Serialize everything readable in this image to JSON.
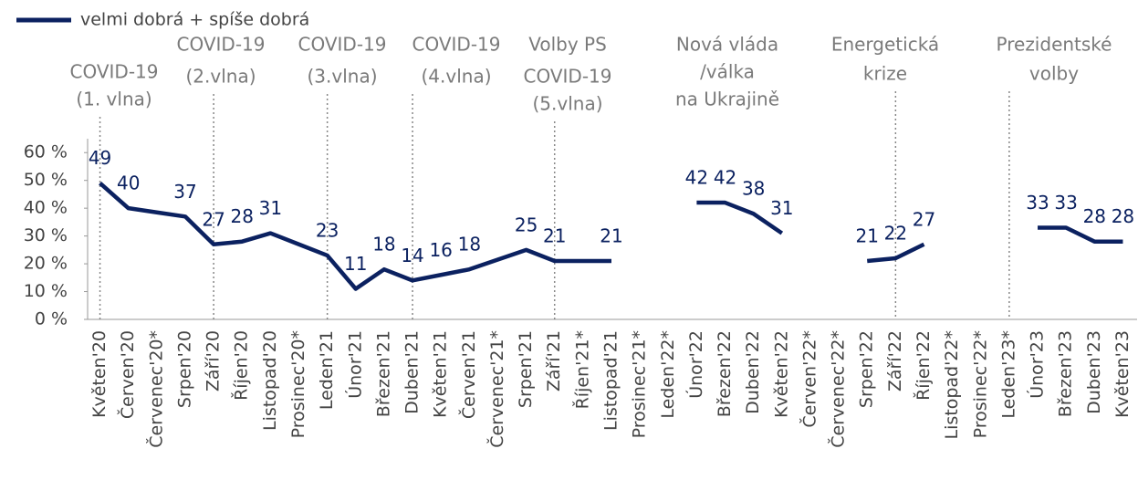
{
  "chart_data": {
    "type": "line",
    "categories": [
      "Květen'20",
      "Červen'20",
      "Červenec'20*",
      "Srpen'20",
      "Září'20",
      "Říjen'20",
      "Listopad'20",
      "Prosinec'20*",
      "Leden'21",
      "Únor'21",
      "Březen'21",
      "Duben'21",
      "Květen'21",
      "Červen'21",
      "Červenec'21*",
      "Srpen'21",
      "Září'21",
      "Říjen'21*",
      "Listopad'21",
      "Prosinec'21*",
      "Leden'22*",
      "Únor'22",
      "Březen'22",
      "Duben'22",
      "Květen'22",
      "Červen'22*",
      "Červenec'22*",
      "Srpen'22",
      "Září'22",
      "Říjen'22",
      "Listopad'22*",
      "Prosinec'22*",
      "Leden'23*",
      "Únor'23",
      "Březen'23",
      "Duben'23",
      "Květen'23"
    ],
    "series": [
      {
        "name": "velmi dobrá + spíše dobrá",
        "color": "#0b2160",
        "values": [
          49,
          40,
          38.5,
          37,
          27,
          28,
          31,
          27,
          23,
          11,
          18,
          14,
          16,
          18,
          21.5,
          25,
          21,
          21,
          21,
          null,
          null,
          42,
          42,
          38,
          31,
          null,
          null,
          21,
          22,
          27,
          null,
          null,
          null,
          33,
          33,
          28,
          28
        ],
        "value_labels": [
          "49",
          "40",
          null,
          "37",
          "27",
          "28",
          "31",
          null,
          "23",
          "11",
          "18",
          "14",
          "16",
          "18",
          null,
          "25",
          "21",
          null,
          "21",
          null,
          null,
          "42",
          "42",
          "38",
          "31",
          null,
          null,
          "21",
          "22",
          "27",
          null,
          null,
          null,
          "33",
          "33",
          "28",
          "28"
        ]
      }
    ],
    "ylim": [
      0,
      65
    ],
    "yticks": [
      {
        "value": 0,
        "label": "0 %"
      },
      {
        "value": 10,
        "label": "10 %"
      },
      {
        "value": 20,
        "label": "20 %"
      },
      {
        "value": 30,
        "label": "30 %"
      },
      {
        "value": 40,
        "label": "40 %"
      },
      {
        "value": 50,
        "label": "50 %"
      },
      {
        "value": 60,
        "label": "60 %"
      }
    ],
    "grid": false,
    "legend": "top-left",
    "annotations": [
      [
        "COVID-19",
        "(1. vlna)"
      ],
      [
        "COVID-19",
        "(2.vlna)"
      ],
      [
        "COVID-19",
        "(3.vlna)"
      ],
      [
        "COVID-19",
        "(4.vlna)"
      ],
      [
        "Volby PS",
        "COVID-19",
        "(5.vlna)"
      ],
      [
        "Nová vláda",
        "/válka",
        "na Ukrajině"
      ],
      [
        "Energetická",
        "krize"
      ],
      [
        "Prezidentské",
        "volby"
      ]
    ]
  }
}
